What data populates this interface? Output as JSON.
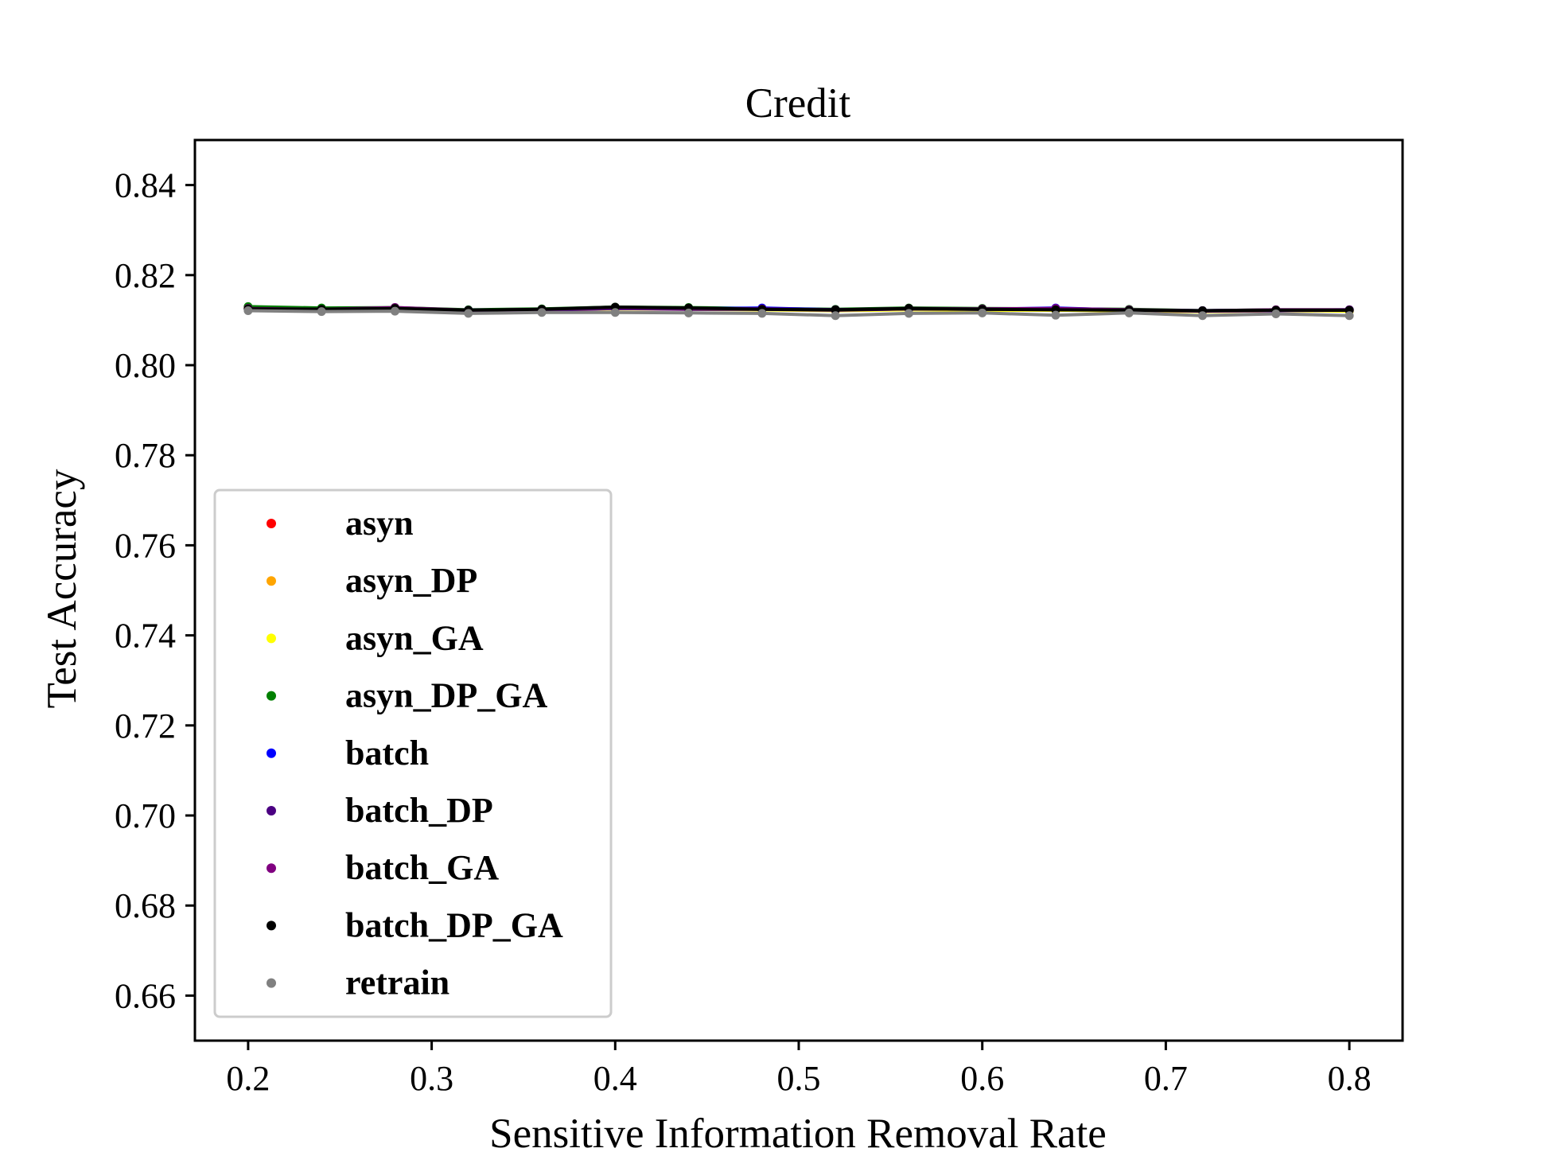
{
  "chart_data": {
    "type": "line",
    "title": "Credit",
    "xlabel": "Sensitive Information Removal Rate",
    "ylabel": "Test Accuracy",
    "xlim": [
      0.171,
      0.829
    ],
    "ylim": [
      0.65,
      0.85
    ],
    "x_ticks": [
      0.2,
      0.3,
      0.4,
      0.5,
      0.6,
      0.7,
      0.8
    ],
    "x_tick_labels": [
      "0.2",
      "0.3",
      "0.4",
      "0.5",
      "0.6",
      "0.7",
      "0.8"
    ],
    "y_ticks": [
      0.66,
      0.68,
      0.7,
      0.72,
      0.74,
      0.76,
      0.78,
      0.8,
      0.82,
      0.84
    ],
    "y_tick_labels": [
      "0.66",
      "0.68",
      "0.70",
      "0.72",
      "0.74",
      "0.76",
      "0.78",
      "0.80",
      "0.82",
      "0.84"
    ],
    "grid": false,
    "legend_position": "lower-left",
    "x": [
      0.2,
      0.24,
      0.28,
      0.32,
      0.36,
      0.4,
      0.44,
      0.48,
      0.52,
      0.56,
      0.6,
      0.64,
      0.68,
      0.72,
      0.76,
      0.8
    ],
    "series": [
      {
        "name": "asyn",
        "color": "#ff0000",
        "values": [
          0.8128,
          0.8124,
          0.8126,
          0.8121,
          0.8123,
          0.8127,
          0.8126,
          0.8124,
          0.8122,
          0.8125,
          0.8124,
          0.8123,
          0.8122,
          0.812,
          0.8122,
          0.8122
        ]
      },
      {
        "name": "asyn_DP",
        "color": "#ffa500",
        "values": [
          0.8127,
          0.8123,
          0.8125,
          0.8121,
          0.8122,
          0.8126,
          0.8125,
          0.8123,
          0.8122,
          0.8124,
          0.8123,
          0.8122,
          0.8121,
          0.8119,
          0.8121,
          0.8121
        ]
      },
      {
        "name": "asyn_GA",
        "color": "#ffff00",
        "values": [
          0.8126,
          0.8123,
          0.8124,
          0.812,
          0.8122,
          0.8125,
          0.8124,
          0.8123,
          0.8121,
          0.8123,
          0.8122,
          0.8122,
          0.8121,
          0.8119,
          0.8121,
          0.812
        ]
      },
      {
        "name": "asyn_DP_GA",
        "color": "#008000",
        "values": [
          0.813,
          0.8127,
          0.8128,
          0.8123,
          0.8125,
          0.8129,
          0.8128,
          0.8126,
          0.8124,
          0.8127,
          0.8126,
          0.8125,
          0.8124,
          0.8121,
          0.8123,
          0.8123
        ]
      },
      {
        "name": "batch",
        "color": "#0000ff",
        "values": [
          0.8125,
          0.8123,
          0.8125,
          0.8122,
          0.8123,
          0.8126,
          0.8125,
          0.8127,
          0.8123,
          0.8125,
          0.8124,
          0.8127,
          0.8122,
          0.8121,
          0.8122,
          0.8123
        ]
      },
      {
        "name": "batch_DP",
        "color": "#4b0082",
        "values": [
          0.8124,
          0.8122,
          0.8126,
          0.8121,
          0.8122,
          0.8126,
          0.8124,
          0.8124,
          0.8122,
          0.8125,
          0.8124,
          0.8125,
          0.8122,
          0.812,
          0.8121,
          0.8122
        ]
      },
      {
        "name": "batch_GA",
        "color": "#800080",
        "values": [
          0.8126,
          0.8124,
          0.8128,
          0.8122,
          0.8124,
          0.8128,
          0.8126,
          0.8125,
          0.8123,
          0.8126,
          0.8125,
          0.8126,
          0.8123,
          0.8121,
          0.8123,
          0.8123
        ]
      },
      {
        "name": "batch_DP_GA",
        "color": "#000000",
        "values": [
          0.8125,
          0.8124,
          0.8126,
          0.8122,
          0.8124,
          0.8129,
          0.8127,
          0.8124,
          0.8123,
          0.8126,
          0.8124,
          0.8123,
          0.8122,
          0.8121,
          0.8122,
          0.8122
        ]
      },
      {
        "name": "retrain",
        "color": "#808080",
        "values": [
          0.8121,
          0.8119,
          0.812,
          0.8115,
          0.8117,
          0.8117,
          0.8116,
          0.8115,
          0.811,
          0.8115,
          0.8116,
          0.8111,
          0.8116,
          0.811,
          0.8114,
          0.811
        ]
      }
    ]
  }
}
